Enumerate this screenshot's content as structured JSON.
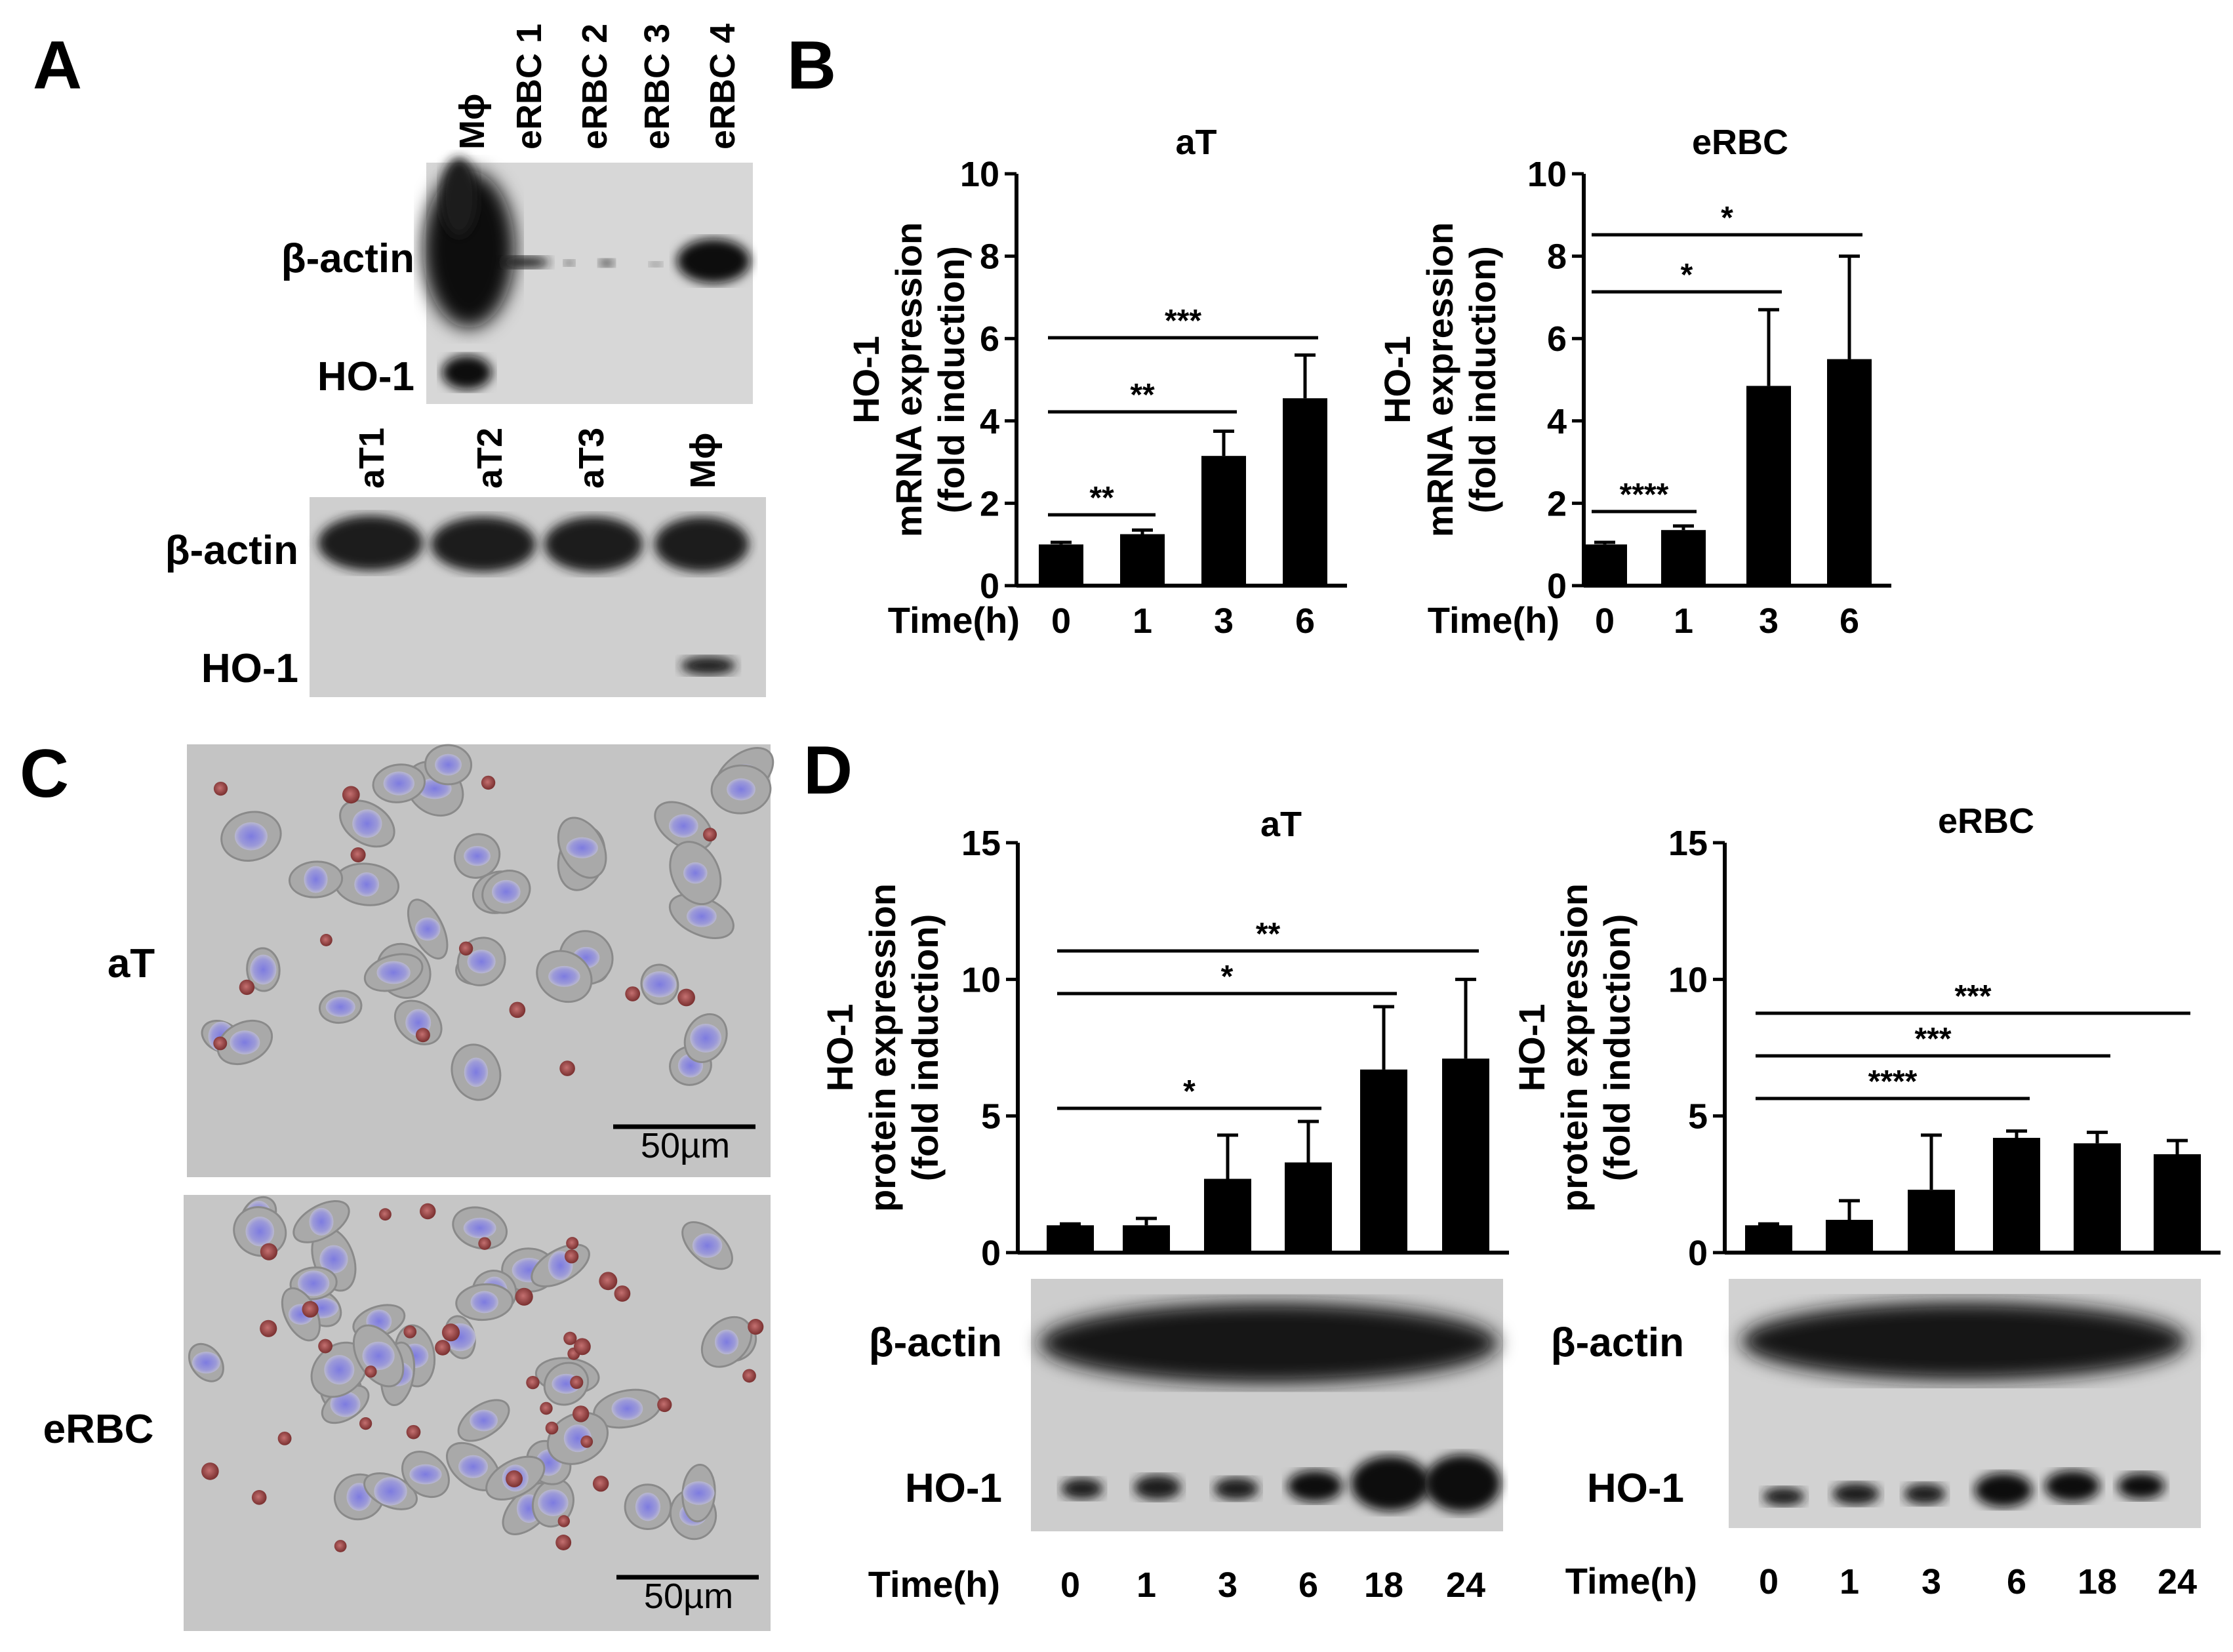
{
  "panels": {
    "A": "A",
    "B": "B",
    "C": "C",
    "D": "D"
  },
  "panelA": {
    "top_lanes": [
      "Mϕ",
      "eRBC 1",
      "eRBC 2",
      "eRBC 3",
      "eRBC 4"
    ],
    "top_rows": [
      "β-actin",
      "HO-1"
    ],
    "bottom_lanes": [
      "aT1",
      "aT2",
      "aT3",
      "Mϕ"
    ],
    "bottom_rows": [
      "β-actin",
      "HO-1"
    ]
  },
  "panelB": {
    "time_label": "Time(h)",
    "ylabel_line1": "HO-1",
    "ylabel_line2": "mRNA expression",
    "ylabel_line3": "(fold induction)"
  },
  "panelC": {
    "row_labels": [
      "aT",
      "eRBC"
    ],
    "scale_bar": "50µm"
  },
  "panelD": {
    "time_label": "Time(h)",
    "ylabel_line1": "HO-1",
    "ylabel_line2": "protein expression",
    "ylabel_line3": "(fold induction)",
    "blot_rows": [
      "β-actin",
      "HO-1"
    ]
  },
  "chart_data": [
    {
      "type": "bar",
      "panel": "B",
      "title": "aT",
      "xlabel": "Time(h)",
      "ylabel": "HO-1 mRNA expression (fold induction)",
      "categories": [
        "0",
        "1",
        "3",
        "6"
      ],
      "values": [
        1.0,
        1.25,
        3.15,
        4.55
      ],
      "errors": [
        0.05,
        0.1,
        0.6,
        1.05
      ],
      "ylim": [
        0,
        10
      ],
      "yticks": [
        0,
        2,
        4,
        6,
        8,
        10
      ],
      "significance": [
        {
          "from": "0",
          "to": "1",
          "label": "**"
        },
        {
          "from": "0",
          "to": "3",
          "label": "**"
        },
        {
          "from": "0",
          "to": "6",
          "label": "***"
        }
      ]
    },
    {
      "type": "bar",
      "panel": "B",
      "title": "eRBC",
      "xlabel": "Time(h)",
      "ylabel": "HO-1 mRNA expression (fold induction)",
      "categories": [
        "0",
        "1",
        "3",
        "6"
      ],
      "values": [
        1.0,
        1.35,
        4.85,
        5.5
      ],
      "errors": [
        0.05,
        0.1,
        1.85,
        2.5
      ],
      "ylim": [
        0,
        10
      ],
      "yticks": [
        0,
        2,
        4,
        6,
        8,
        10
      ],
      "significance": [
        {
          "from": "0",
          "to": "1",
          "label": "****"
        },
        {
          "from": "0",
          "to": "3",
          "label": "*"
        },
        {
          "from": "0",
          "to": "6",
          "label": "*"
        }
      ]
    },
    {
      "type": "bar",
      "panel": "D",
      "title": "aT",
      "xlabel": "Time(h)",
      "ylabel": "HO-1 protein expression (fold induction)",
      "categories": [
        "0",
        "1",
        "3",
        "6",
        "18",
        "24"
      ],
      "values": [
        1.0,
        1.0,
        2.7,
        3.3,
        6.7,
        7.1
      ],
      "errors": [
        0.05,
        0.25,
        1.6,
        1.5,
        2.3,
        2.9
      ],
      "ylim": [
        0,
        15
      ],
      "yticks": [
        0,
        5,
        10,
        15
      ],
      "significance": [
        {
          "from": "0",
          "to": "6",
          "label": "*"
        },
        {
          "from": "0",
          "to": "18",
          "label": "*"
        },
        {
          "from": "0",
          "to": "24",
          "label": "**"
        }
      ]
    },
    {
      "type": "bar",
      "panel": "D",
      "title": "eRBC",
      "xlabel": "Time(h)",
      "ylabel": "HO-1 protein expression (fold induction)",
      "categories": [
        "0",
        "1",
        "3",
        "6",
        "18",
        "24"
      ],
      "values": [
        1.0,
        1.2,
        2.3,
        4.2,
        4.0,
        3.6
      ],
      "errors": [
        0.05,
        0.7,
        2.0,
        0.25,
        0.4,
        0.5
      ],
      "ylim": [
        0,
        15
      ],
      "yticks": [
        0,
        5,
        10,
        15
      ],
      "significance": [
        {
          "from": "0",
          "to": "6",
          "label": "****"
        },
        {
          "from": "0",
          "to": "18",
          "label": "***"
        },
        {
          "from": "0",
          "to": "24",
          "label": "***"
        }
      ]
    }
  ]
}
